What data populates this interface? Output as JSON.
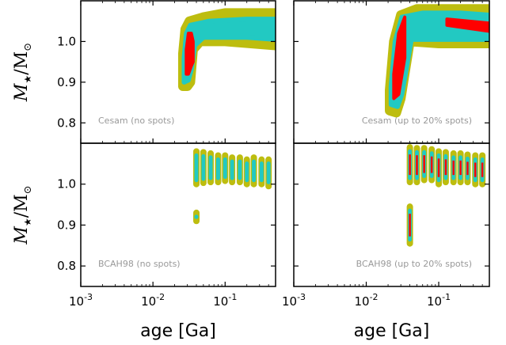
{
  "colors": {
    "outer": "#bdbd0f",
    "middle": "#22c9c2",
    "inner": "#ff0000",
    "annotation": "#999999"
  },
  "ylabel": {
    "symbol": "M",
    "subscript_star": "★",
    "divider": "/M",
    "subscript_sun": "⊙"
  },
  "xlabel": "age [Ga]",
  "x_ticks": [
    {
      "value": 0.001,
      "base": "10",
      "exp": "-3"
    },
    {
      "value": 0.01,
      "base": "10",
      "exp": "-2"
    },
    {
      "value": 0.1,
      "base": "10",
      "exp": "-1"
    }
  ],
  "chart_data": [
    {
      "type": "scatter",
      "annotation": "Cesam (no spots)",
      "x_scale": "log",
      "xlim": [
        0.001,
        0.5
      ],
      "ylim": [
        0.75,
        1.1
      ],
      "y_ticks": [
        "0.8",
        "0.9",
        "1.0"
      ],
      "y_tick_values": [
        0.8,
        0.9,
        1.0
      ],
      "bands": {
        "outer": {
          "upper": [
            [
              0.026,
              0.97
            ],
            [
              0.028,
              1.03
            ],
            [
              0.032,
              1.05
            ],
            [
              0.05,
              1.06
            ],
            [
              0.1,
              1.07
            ],
            [
              0.5,
              1.07
            ]
          ],
          "lower": [
            [
              0.026,
              0.89
            ],
            [
              0.03,
              0.89
            ],
            [
              0.033,
              0.9
            ],
            [
              0.036,
              0.98
            ],
            [
              0.045,
              1.0
            ],
            [
              0.1,
              1.0
            ],
            [
              0.5,
              0.99
            ]
          ]
        },
        "middle": {
          "upper": [
            [
              0.027,
              0.96
            ],
            [
              0.029,
              1.02
            ],
            [
              0.033,
              1.04
            ],
            [
              0.06,
              1.05
            ],
            [
              0.2,
              1.055
            ],
            [
              0.5,
              1.055
            ]
          ],
          "lower": [
            [
              0.027,
              0.9
            ],
            [
              0.031,
              0.905
            ],
            [
              0.034,
              0.93
            ],
            [
              0.038,
              0.99
            ],
            [
              0.05,
              1.01
            ],
            [
              0.2,
              1.01
            ],
            [
              0.5,
              1.005
            ]
          ]
        },
        "inner": {
          "upper": [
            [
              0.029,
              0.98
            ],
            [
              0.031,
              1.02
            ],
            [
              0.034,
              1.02
            ],
            [
              0.036,
              1.0
            ]
          ],
          "lower": [
            [
              0.029,
              0.92
            ],
            [
              0.031,
              0.92
            ],
            [
              0.034,
              0.94
            ],
            [
              0.036,
              0.95
            ]
          ]
        }
      }
    },
    {
      "type": "scatter",
      "annotation": "Cesam (up to 20% spots)",
      "x_scale": "log",
      "xlim": [
        0.001,
        0.5
      ],
      "ylim": [
        0.75,
        1.1
      ],
      "y_ticks": [
        "0.8",
        "0.9",
        "1.0"
      ],
      "y_tick_values": [
        0.8,
        0.9,
        1.0
      ],
      "bands": {
        "outer": {
          "upper": [
            [
              0.021,
              0.88
            ],
            [
              0.024,
              1.0
            ],
            [
              0.03,
              1.065
            ],
            [
              0.05,
              1.08
            ],
            [
              0.1,
              1.08
            ],
            [
              0.5,
              1.08
            ]
          ],
          "lower": [
            [
              0.021,
              0.83
            ],
            [
              0.026,
              0.825
            ],
            [
              0.03,
              0.86
            ],
            [
              0.04,
              1.0
            ],
            [
              0.1,
              0.995
            ],
            [
              0.5,
              0.995
            ]
          ]
        },
        "middle": {
          "upper": [
            [
              0.022,
              0.89
            ],
            [
              0.025,
              1.0
            ],
            [
              0.031,
              1.06
            ],
            [
              0.06,
              1.07
            ],
            [
              0.2,
              1.07
            ],
            [
              0.5,
              1.065
            ]
          ],
          "lower": [
            [
              0.022,
              0.845
            ],
            [
              0.027,
              0.84
            ],
            [
              0.031,
              0.87
            ],
            [
              0.042,
              1.005
            ],
            [
              0.2,
              1.005
            ],
            [
              0.5,
              1.005
            ]
          ]
        },
        "inner": {
          "upper": [
            [
              0.024,
              0.92
            ],
            [
              0.028,
              1.02
            ],
            [
              0.034,
              1.06
            ]
          ],
          "lower": [
            [
              0.024,
              0.86
            ],
            [
              0.028,
              0.87
            ],
            [
              0.034,
              0.96
            ]
          ],
          "extra_segment": {
            "upper": [
              [
                0.13,
                1.055
              ],
              [
                0.5,
                1.045
              ]
            ],
            "lower": [
              [
                0.13,
                1.04
              ],
              [
                0.5,
                1.025
              ]
            ]
          }
        }
      }
    },
    {
      "type": "scatter",
      "annotation": "BCAH98 (no spots)",
      "x_scale": "log",
      "xlim": [
        0.001,
        0.5
      ],
      "ylim": [
        0.75,
        1.1
      ],
      "y_ticks": [
        "0.8",
        "0.9",
        "1.0"
      ],
      "y_tick_values": [
        0.8,
        0.9,
        1.0
      ],
      "columns": [
        {
          "x": 0.04,
          "y_top": 1.08,
          "y_bottom": 1.0,
          "inner": false
        },
        {
          "x": 0.05,
          "y_top": 1.078,
          "y_bottom": 1.003,
          "inner": false
        },
        {
          "x": 0.063,
          "y_top": 1.075,
          "y_bottom": 1.005,
          "inner": false
        },
        {
          "x": 0.08,
          "y_top": 1.07,
          "y_bottom": 1.005,
          "inner": false
        },
        {
          "x": 0.1,
          "y_top": 1.07,
          "y_bottom": 1.008,
          "inner": false
        },
        {
          "x": 0.125,
          "y_top": 1.065,
          "y_bottom": 1.005,
          "inner": false
        },
        {
          "x": 0.16,
          "y_top": 1.065,
          "y_bottom": 1.005,
          "inner": false
        },
        {
          "x": 0.2,
          "y_top": 1.06,
          "y_bottom": 1.0,
          "inner": false
        },
        {
          "x": 0.25,
          "y_top": 1.065,
          "y_bottom": 1.0,
          "inner": false
        },
        {
          "x": 0.32,
          "y_top": 1.06,
          "y_bottom": 1.0,
          "inner": false
        },
        {
          "x": 0.4,
          "y_top": 1.06,
          "y_bottom": 0.995,
          "inner": false
        },
        {
          "x": 0.04,
          "y_top": 0.93,
          "y_bottom": 0.91,
          "inner": false
        }
      ]
    },
    {
      "type": "scatter",
      "annotation": "BCAH98 (up to 20% spots)",
      "x_scale": "log",
      "xlim": [
        0.001,
        0.5
      ],
      "ylim": [
        0.75,
        1.1
      ],
      "y_ticks": [
        "0.8",
        "0.9",
        "1.0"
      ],
      "y_tick_values": [
        0.8,
        0.9,
        1.0
      ],
      "columns": [
        {
          "x": 0.04,
          "y_top": 1.09,
          "y_bottom": 1.005,
          "inner": true
        },
        {
          "x": 0.05,
          "y_top": 1.088,
          "y_bottom": 1.005,
          "inner": true
        },
        {
          "x": 0.063,
          "y_top": 1.088,
          "y_bottom": 1.01,
          "inner": true
        },
        {
          "x": 0.08,
          "y_top": 1.085,
          "y_bottom": 1.01,
          "inner": true
        },
        {
          "x": 0.1,
          "y_top": 1.08,
          "y_bottom": 1.0,
          "inner": true
        },
        {
          "x": 0.125,
          "y_top": 1.078,
          "y_bottom": 1.005,
          "inner": true
        },
        {
          "x": 0.16,
          "y_top": 1.075,
          "y_bottom": 1.005,
          "inner": true
        },
        {
          "x": 0.2,
          "y_top": 1.075,
          "y_bottom": 1.005,
          "inner": true
        },
        {
          "x": 0.25,
          "y_top": 1.072,
          "y_bottom": 1.005,
          "inner": true
        },
        {
          "x": 0.32,
          "y_top": 1.07,
          "y_bottom": 1.0,
          "inner": true
        },
        {
          "x": 0.4,
          "y_top": 1.07,
          "y_bottom": 1.0,
          "inner": true
        },
        {
          "x": 0.04,
          "y_top": 0.945,
          "y_bottom": 0.855,
          "inner": true
        }
      ]
    }
  ]
}
